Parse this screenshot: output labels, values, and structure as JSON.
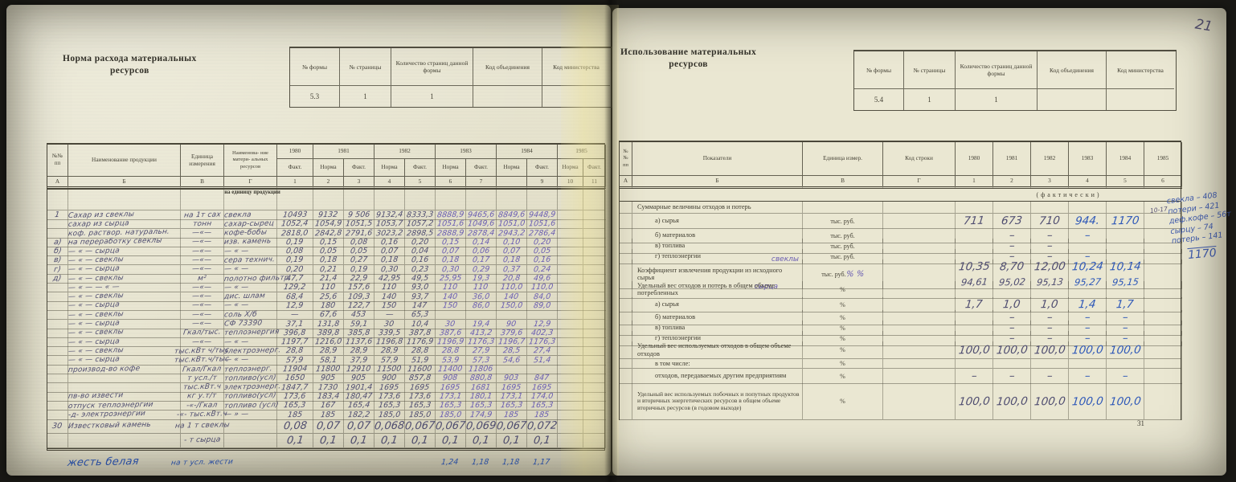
{
  "spread": {
    "corner_note": "21",
    "page_number_right": "31"
  },
  "left_page": {
    "title": [
      "Норма расхода материальных",
      "ресурсов"
    ],
    "form_info": {
      "headers": [
        "№ формы",
        "№ страницы",
        "Количество страниц данной формы",
        "Код объединения",
        "Код министерства"
      ],
      "values": [
        "5.3",
        "1",
        "1",
        "",
        ""
      ]
    },
    "table": {
      "corner": "№№ пп",
      "head_product": "Наименование продукции",
      "head_unit": "Единица измерения",
      "head_resource": "Наименова- ние матери- альных ресурсов",
      "years": [
        "1980",
        "1981",
        "1982",
        "1983",
        "1984",
        "1985"
      ],
      "sub": [
        "Факт.",
        "Норма",
        "Факт.",
        "Норма",
        "Факт.",
        "Норма",
        "Факт.",
        "Норма",
        "Факт.",
        "Норма",
        "Факт."
      ],
      "letters": [
        "А",
        "Б",
        "В",
        "Г",
        "1",
        "2",
        "3",
        "4",
        "5",
        "6",
        "7",
        "",
        "9",
        "10",
        "11"
      ],
      "unit_note": "на единицу продукции",
      "rows": [
        {
          "no": "1",
          "product": "Сахар из свеклы",
          "unit": "на 1т сах",
          "resource": "свекла",
          "values": [
            "10493",
            "9132",
            "9 506",
            "9132,4",
            "8333,3",
            "8888,9",
            "9465,6",
            "8849,6",
            "9448,9",
            "",
            ""
          ]
        },
        {
          "no": "",
          "product": "сахар из сырца",
          "unit": "тонн",
          "resource": "сахар-сырец",
          "values": [
            "1052,4",
            "1054,9",
            "1051,5",
            "1053,7",
            "1057,2",
            "1051,6",
            "1049,6",
            "1051,0",
            "1051,6",
            "",
            ""
          ]
        },
        {
          "no": "",
          "product": "коф. раствор. натуральн.",
          "unit": "—«—",
          "resource": "кофе-бобы",
          "values": [
            "2818,0",
            "2842,8",
            "2791,6",
            "3023,2",
            "2898,5",
            "2888,9",
            "2878,4",
            "2943,2",
            "2786,4",
            "",
            ""
          ]
        },
        {
          "no": "а)",
          "product": "на переработку свеклы",
          "unit": "—«—",
          "resource": "изв. камень",
          "values": [
            "0,19",
            "0,15",
            "0,08",
            "0,16",
            "0,20",
            "0,15",
            "0,14",
            "0,10",
            "0,20",
            "",
            ""
          ]
        },
        {
          "no": "б)",
          "product": "— « — сырца",
          "unit": "—«—",
          "resource": "— « —",
          "values": [
            "0,08",
            "0,05",
            "0,05",
            "0,07",
            "0,04",
            "0,07",
            "0,06",
            "0,07",
            "0,05",
            "",
            ""
          ]
        },
        {
          "no": "в)",
          "product": "— « — свеклы",
          "unit": "—«—",
          "resource": "сера технич.",
          "values": [
            "0,19",
            "0,18",
            "0,27",
            "0,18",
            "0,16",
            "0,18",
            "0,17",
            "0,18",
            "0,16",
            "",
            ""
          ]
        },
        {
          "no": "г)",
          "product": "— « — сырца",
          "unit": "—«—",
          "resource": "— « —",
          "values": [
            "0,20",
            "0,21",
            "0,19",
            "0,30",
            "0,23",
            "0,30",
            "0,29",
            "0,37",
            "0,24",
            "",
            ""
          ]
        },
        {
          "no": "д)",
          "product": "— « — свеклы",
          "unit": "м²",
          "resource": "полотно фильтр.",
          "values": [
            "47,7",
            "21,4",
            "22,9",
            "42,95",
            "49,5",
            "25,95",
            "19,3",
            "20,8",
            "49,6",
            "",
            ""
          ]
        },
        {
          "no": "",
          "product": "— « — — « —",
          "unit": "—«—",
          "resource": "— « —",
          "values": [
            "129,2",
            "110",
            "157,6",
            "110",
            "93,0",
            "110",
            "110",
            "110,0",
            "110,0",
            "",
            ""
          ]
        },
        {
          "no": "",
          "product": "— « — свеклы",
          "unit": "—«—",
          "resource": "дис. шлам",
          "values": [
            "68,4",
            "25,6",
            "109,3",
            "140",
            "93,7",
            "140",
            "36,0",
            "140",
            "84,0",
            "",
            ""
          ]
        },
        {
          "no": "",
          "product": "— « — сырца",
          "unit": "—«—",
          "resource": "— « —",
          "values": [
            "12,9",
            "180",
            "122,7",
            "150",
            "147",
            "150",
            "86,0",
            "150,0",
            "89,0",
            "",
            ""
          ]
        },
        {
          "no": "",
          "product": "— « — свеклы",
          "unit": "—«—",
          "resource": "соль Х/б",
          "values": [
            "—",
            "67,6",
            "453",
            "—",
            "65,3",
            "",
            "",
            "",
            "",
            "",
            ""
          ]
        },
        {
          "no": "",
          "product": "— « — сырца",
          "unit": "—«—",
          "resource": "СФ 73390",
          "values": [
            "37,1",
            "131,8",
            "59,1",
            "30",
            "10,4",
            "30",
            "19,4",
            "90",
            "12,9",
            "",
            ""
          ]
        },
        {
          "no": "",
          "product": "— « — свеклы",
          "unit": "Гкал/тыс.",
          "resource": "теплоэнергия",
          "values": [
            "396,8",
            "389,8",
            "385,8",
            "339,5",
            "387,8",
            "387,6",
            "413,2",
            "379,6",
            "402,3",
            "",
            ""
          ]
        },
        {
          "no": "",
          "product": "— « — сырца",
          "unit": "—«—",
          "resource": "— « —",
          "values": [
            "1197,7",
            "1216,0",
            "1137,6",
            "1196,8",
            "1176,9",
            "1196,9",
            "1176,3",
            "1196,7",
            "1176,3",
            "",
            ""
          ]
        },
        {
          "no": "",
          "product": "— « — свеклы",
          "unit": "тыс.кВт ч/тыс",
          "resource": "электроэнерг.",
          "values": [
            "28,8",
            "28,9",
            "28,9",
            "28,9",
            "28,8",
            "28,8",
            "27,9",
            "28,5",
            "27,4",
            "",
            ""
          ]
        },
        {
          "no": "",
          "product": "— « — сырца",
          "unit": "тыс.кВт.ч/тыс",
          "resource": "— « —",
          "values": [
            "57,9",
            "58,1",
            "37,9",
            "57,9",
            "51,9",
            "53,9",
            "57,3",
            "54,6",
            "51,4",
            "",
            ""
          ]
        },
        {
          "no": "",
          "product": "производ-во кофе",
          "unit": "Гкал/Гкал",
          "resource": "теплоэнерг.",
          "values": [
            "11904",
            "11800",
            "12910",
            "11500",
            "11600",
            "11400",
            "11806",
            "",
            "",
            "",
            ""
          ]
        },
        {
          "no": "",
          "product": "",
          "unit": "т усл./т",
          "resource": "топливо(усл)",
          "values": [
            "1650",
            "905",
            "905",
            "900",
            "857,8",
            "908",
            "880,8",
            "903",
            "847",
            "",
            ""
          ]
        },
        {
          "no": "",
          "product": "",
          "unit": "тыс.кВт.ч",
          "resource": "электроэнерг.",
          "values": [
            "1847,7",
            "1730",
            "1901,4",
            "1695",
            "1695",
            "1695",
            "1681",
            "1695",
            "1695",
            "",
            ""
          ]
        },
        {
          "no": "",
          "product": "пв-во извести",
          "unit": "кг у.т/т",
          "resource": "топливо(усл)",
          "values": [
            "173,6",
            "183,4",
            "180,47",
            "173,6",
            "173,6",
            "173,1",
            "180,1",
            "173,1",
            "174,0",
            "",
            ""
          ]
        },
        {
          "no": "",
          "product": "отпуск теплоэнергии",
          "unit": "-«-/Гкал",
          "resource": "топливо (усл)",
          "values": [
            "165,3",
            "167",
            "165,4",
            "165,3",
            "165,3",
            "165,3",
            "165,3",
            "165,3",
            "165,3",
            "",
            ""
          ]
        },
        {
          "no": "",
          "product": "-д- электроэнергии",
          "unit": "-«- тыс.кВт.ч",
          "resource": "— » —",
          "values": [
            "185",
            "185",
            "182,2",
            "185,0",
            "185,0",
            "185,0",
            "174,9",
            "185",
            "185",
            "",
            ""
          ]
        }
      ],
      "bottom_rows": [
        {
          "no": "30",
          "product": "Известковый камень",
          "unit": "на 1 т свеклы",
          "resource": "",
          "values": [
            "0,08",
            "0,07",
            "0,07",
            "0,068",
            "0,067",
            "0,067",
            "0,069",
            "0,067",
            "0,072",
            "",
            ""
          ]
        },
        {
          "no": "",
          "product": "",
          "unit": "- т сырца",
          "resource": "",
          "values": [
            "0,1",
            "0,1",
            "0,1",
            "0,1",
            "0,1",
            "0,1",
            "0,1",
            "0,1",
            "0,1",
            "",
            ""
          ]
        }
      ],
      "footer_row": {
        "product": "жесть белая",
        "unit": "на т усл. жести",
        "values": [
          "",
          "",
          "",
          "",
          "",
          "1,24",
          "1,18",
          "1,18",
          "1,17",
          "",
          ""
        ]
      }
    }
  },
  "right_page": {
    "title": [
      "Использование материальных",
      "ресурсов"
    ],
    "form_info": {
      "headers": [
        "№ формы",
        "№ страницы",
        "Количество страниц данной формы",
        "Код объединения",
        "Код министерства"
      ],
      "values": [
        "5.4",
        "1",
        "1",
        "",
        ""
      ]
    },
    "table": {
      "corner": "№№ пп",
      "head_indicator": "Показатели",
      "head_unit": "Единица измер.",
      "head_code": "Код строки",
      "years": [
        "1980",
        "1981",
        "1982",
        "1983",
        "1984",
        "1985"
      ],
      "letters": [
        "А",
        "Б",
        "В",
        "Г",
        "1",
        "2",
        "3",
        "4",
        "5",
        "6"
      ],
      "fact_note": "(фактически)",
      "rows": [
        {
          "label": "Суммарные величины отходов и потерь",
          "indent": 0,
          "unit": "",
          "values": [
            "",
            "",
            "",
            "",
            "",
            ""
          ]
        },
        {
          "label": "а) сырья",
          "indent": 1,
          "unit": "тыс. руб.",
          "values": [
            "711",
            "673",
            "710",
            "944.",
            "1170",
            ""
          ]
        },
        {
          "label": "б) материалов",
          "indent": 1,
          "unit": "тыс. руб.",
          "values": [
            "",
            "–",
            "–",
            "–",
            "",
            ""
          ]
        },
        {
          "label": "в) топлива",
          "indent": 1,
          "unit": "тыс. руб.",
          "values": [
            "",
            "–",
            "–",
            "",
            "",
            ""
          ]
        },
        {
          "label": "г) теплоэнергии",
          "indent": 1,
          "unit": "тыс. руб.",
          "values": [
            "",
            "–",
            "–",
            "–",
            "",
            ""
          ]
        },
        {
          "label": "Коэффициент извлечения продукции из исходного сырья",
          "indent": 0,
          "unit": "тыс. руб.",
          "unit_hw": "% %",
          "hw_above": "свеклы",
          "hw_below": "сырца",
          "values": [
            "10,35",
            "8,70",
            "12,00",
            "10,24",
            "10,14",
            ""
          ],
          "values2": [
            "94,61",
            "95,02",
            "95,13",
            "95,27",
            "95,15",
            ""
          ]
        },
        {
          "label": "Удельный вес отходов и потерь в общем объеме потребленных",
          "indent": 0,
          "unit": "%",
          "values": [
            "",
            "",
            "",
            "",
            "",
            ""
          ]
        },
        {
          "label": "а) сырья",
          "indent": 1,
          "unit": "%",
          "values": [
            "1,7",
            "1,0",
            "1,0",
            "1,4",
            "1,7",
            ""
          ]
        },
        {
          "label": "б) материалов",
          "indent": 1,
          "unit": "%",
          "values": [
            "",
            "–",
            "–",
            "–",
            "–",
            ""
          ]
        },
        {
          "label": "в) топлива",
          "indent": 1,
          "unit": "%",
          "values": [
            "",
            "–",
            "–",
            "–",
            "–",
            ""
          ]
        },
        {
          "label": "г) теплоэнергии",
          "indent": 1,
          "unit": "%",
          "values": [
            "",
            "–",
            "–",
            "–",
            "–",
            ""
          ]
        },
        {
          "label": "Удельный вес используемых отходов в общем объеме отходов",
          "indent": 0,
          "unit": "%",
          "values": [
            "100,0",
            "100,0",
            "100,0",
            "100,0",
            "100,0",
            ""
          ]
        },
        {
          "label": "в том числе:",
          "indent": 1,
          "unit": "%",
          "values": [
            "",
            "",
            "",
            "",
            "",
            ""
          ]
        },
        {
          "label": "отходов, передаваемых другим предприятиям",
          "indent": 1,
          "unit": "%",
          "values": [
            "–",
            "–",
            "–",
            "–",
            "–",
            ""
          ]
        },
        {
          "label": "Удельный вес используемых побочных и попутных продуктов и вторичных энергетических ресурсов в общем объеме вторичных ресурсов (в годовом выходе)",
          "indent": 0,
          "unit": "%",
          "values": [
            "100,0",
            "100,0",
            "100,0",
            "100,0",
            "100,0",
            ""
          ]
        }
      ]
    }
  },
  "marginalia": {
    "prefix": "10-17",
    "lines": [
      "свекла – 408",
      "потери – 421",
      "деф.кофе – 56т",
      "сырцу – 74",
      "потерь – 141"
    ],
    "total": "1170"
  }
}
